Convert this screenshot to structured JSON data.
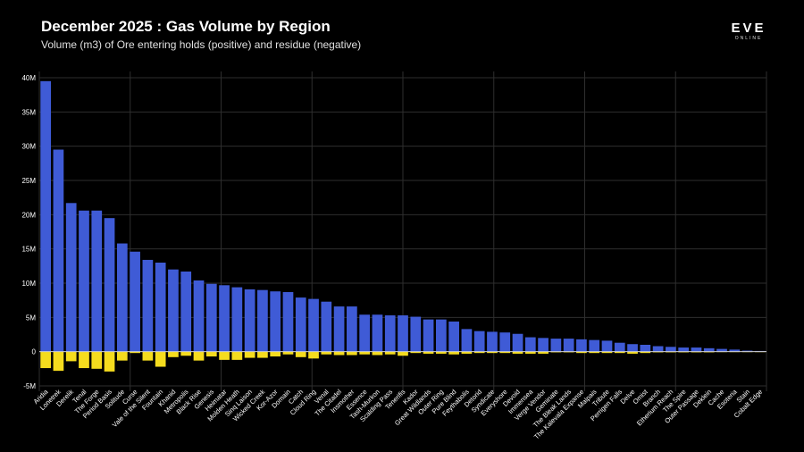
{
  "header": {
    "title": "December 2025 : Gas Volume by Region",
    "subtitle": "Volume (m3) of Ore entering holds (positive) and residue (negative)"
  },
  "logo": {
    "text": "EVE",
    "subtext": "ONLINE"
  },
  "colors": {
    "positive": "#3f5bd6",
    "negative": "#f5dc1e",
    "background": "#000000",
    "grid": "#2e2e2e"
  },
  "chart_data": {
    "type": "bar",
    "title": "December 2025 : Gas Volume by Region",
    "subtitle": "Volume (m3) of Ore entering holds (positive) and residue (negative)",
    "xlabel": "",
    "ylabel": "",
    "ylim": [
      -5,
      40
    ],
    "yticks": [
      -5,
      0,
      5,
      10,
      15,
      20,
      25,
      30,
      35,
      40
    ],
    "ytick_labels": [
      "-5M",
      "0",
      "5M",
      "10M",
      "15M",
      "20M",
      "25M",
      "30M",
      "35M",
      "40M"
    ],
    "grid": true,
    "categories": [
      "Aridia",
      "Lonetrek",
      "Derelik",
      "Tenal",
      "The Forge",
      "Period Basis",
      "Solitude",
      "Curse",
      "Vale of the Silent",
      "Fountain",
      "Khanid",
      "Metropolis",
      "Black Rise",
      "Genesis",
      "Heimatar",
      "Molden Heath",
      "Sinq Laison",
      "Wicked Creek",
      "Kor-Azor",
      "Domain",
      "Catch",
      "Cloud Ring",
      "Venal",
      "The Citadel",
      "Insmother",
      "Essence",
      "Tash-Murkon",
      "Scalding Pass",
      "Tenerifis",
      "Kador",
      "Great Wildlands",
      "Outer Ring",
      "Pure Blind",
      "Feythabolis",
      "Detorid",
      "Syndicate",
      "Everyshore",
      "Devoid",
      "Immensea",
      "Verge Vendor",
      "Geminate",
      "The Bleak Lands",
      "The Kalevala Expanse",
      "Malpais",
      "Tribute",
      "Perrigen Falls",
      "Delve",
      "Omist",
      "Branch",
      "Etherium Reach",
      "The Spire",
      "Outer Passage",
      "Deklein",
      "Cache",
      "Esoteria",
      "Stain",
      "Cobalt Edge"
    ],
    "series": [
      {
        "name": "Entering holds",
        "color": "#3f5bd6",
        "values": [
          39.5,
          29.5,
          21.7,
          20.6,
          20.6,
          19.5,
          15.8,
          14.6,
          13.4,
          13.0,
          12.0,
          11.7,
          10.4,
          9.9,
          9.7,
          9.4,
          9.1,
          9.0,
          8.8,
          8.7,
          7.9,
          7.7,
          7.3,
          6.6,
          6.6,
          5.4,
          5.4,
          5.3,
          5.3,
          5.1,
          4.7,
          4.7,
          4.4,
          3.3,
          3.0,
          2.9,
          2.8,
          2.6,
          2.1,
          2.0,
          1.9,
          1.9,
          1.8,
          1.7,
          1.6,
          1.3,
          1.1,
          1.0,
          0.8,
          0.7,
          0.6,
          0.6,
          0.5,
          0.4,
          0.3,
          0.15,
          0.1
        ]
      },
      {
        "name": "Residue",
        "color": "#f5dc1e",
        "values": [
          -2.4,
          -2.8,
          -1.4,
          -2.4,
          -2.5,
          -2.9,
          -1.3,
          -0.2,
          -1.3,
          -2.2,
          -0.8,
          -0.6,
          -1.3,
          -0.7,
          -1.2,
          -1.2,
          -0.9,
          -0.9,
          -0.7,
          -0.4,
          -0.8,
          -1.0,
          -0.4,
          -0.5,
          -0.5,
          -0.4,
          -0.5,
          -0.4,
          -0.6,
          -0.2,
          -0.3,
          -0.3,
          -0.4,
          -0.3,
          -0.2,
          -0.2,
          -0.2,
          -0.3,
          -0.3,
          -0.3,
          -0.1,
          -0.1,
          -0.2,
          -0.2,
          -0.2,
          -0.2,
          -0.3,
          -0.2,
          -0.1,
          -0.1,
          -0.1,
          -0.1,
          -0.1,
          -0.05,
          -0.05,
          -0.02,
          -0.02
        ]
      }
    ]
  }
}
